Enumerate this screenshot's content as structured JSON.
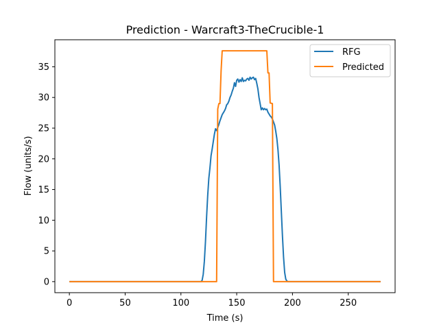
{
  "chart_data": {
    "type": "line",
    "title": "Prediction - Warcraft3-TheCrucible-1",
    "xlabel": "Time (s)",
    "ylabel": "Flow (units/s)",
    "xlim": [
      -13,
      292
    ],
    "ylim": [
      -1.8,
      39.4
    ],
    "xticks": [
      0,
      50,
      100,
      150,
      200,
      250
    ],
    "yticks": [
      0,
      5,
      10,
      15,
      20,
      25,
      30,
      35
    ],
    "grid": false,
    "legend_position": "top-right",
    "series": [
      {
        "name": "RFG",
        "color": "#1f77b4",
        "points": [
          [
            0,
            0
          ],
          [
            118,
            0
          ],
          [
            119,
            0.2
          ],
          [
            120,
            1.2
          ],
          [
            121,
            3.3
          ],
          [
            122,
            6.5
          ],
          [
            123,
            10.5
          ],
          [
            124,
            14
          ],
          [
            125,
            16.8
          ],
          [
            126,
            18.5
          ],
          [
            127,
            20.5
          ],
          [
            128,
            21.6
          ],
          [
            129,
            22.8
          ],
          [
            130,
            24
          ],
          [
            131,
            24.9
          ],
          [
            132,
            24.6
          ],
          [
            133,
            25.1
          ],
          [
            134,
            25.6
          ],
          [
            135,
            26.2
          ],
          [
            136,
            26.7
          ],
          [
            137,
            27.2
          ],
          [
            138,
            27.5
          ],
          [
            139,
            27.8
          ],
          [
            140,
            28.2
          ],
          [
            141,
            28.8
          ],
          [
            142,
            29.0
          ],
          [
            143,
            29.4
          ],
          [
            144,
            30.0
          ],
          [
            145,
            30.4
          ],
          [
            146,
            31.0
          ],
          [
            147,
            31.5
          ],
          [
            148,
            32.4
          ],
          [
            149,
            31.8
          ],
          [
            150,
            32.8
          ],
          [
            151,
            33.0
          ],
          [
            152,
            32.5
          ],
          [
            153,
            32.9
          ],
          [
            154,
            32.6
          ],
          [
            155,
            33.2
          ],
          [
            156,
            32.6
          ],
          [
            157,
            32.8
          ],
          [
            158,
            32.7
          ],
          [
            159,
            33.0
          ],
          [
            160,
            33.1
          ],
          [
            161,
            32.8
          ],
          [
            162,
            33.3
          ],
          [
            163,
            33.0
          ],
          [
            164,
            33.2
          ],
          [
            165,
            33.3
          ],
          [
            166,
            32.9
          ],
          [
            167,
            33.1
          ],
          [
            168,
            32.3
          ],
          [
            169,
            31.4
          ],
          [
            170,
            30.0
          ],
          [
            171,
            29.0
          ],
          [
            172,
            28.0
          ],
          [
            173,
            28.3
          ],
          [
            174,
            28.0
          ],
          [
            175,
            28.2
          ],
          [
            176,
            28.0
          ],
          [
            177,
            28.1
          ],
          [
            178,
            27.6
          ],
          [
            179,
            27.3
          ],
          [
            180,
            27.0
          ],
          [
            181,
            26.8
          ],
          [
            182,
            26.5
          ],
          [
            183,
            26.0
          ],
          [
            184,
            25.5
          ],
          [
            185,
            24.5
          ],
          [
            186,
            23.3
          ],
          [
            187,
            21.5
          ],
          [
            188,
            19.0
          ],
          [
            189,
            15.5
          ],
          [
            190,
            11.5
          ],
          [
            191,
            7.5
          ],
          [
            192,
            4.0
          ],
          [
            193,
            1.5
          ],
          [
            194,
            0.4
          ],
          [
            195,
            0.1
          ],
          [
            196,
            0
          ],
          [
            279,
            0
          ]
        ]
      },
      {
        "name": "Predicted",
        "color": "#ff7f0e",
        "points": [
          [
            0,
            0
          ],
          [
            132,
            0
          ],
          [
            133,
            28.1
          ],
          [
            134,
            29.0
          ],
          [
            135,
            29.0
          ],
          [
            136,
            34.3
          ],
          [
            137,
            37.6
          ],
          [
            177,
            37.6
          ],
          [
            178,
            34.0
          ],
          [
            179,
            34.0
          ],
          [
            180,
            29.1
          ],
          [
            182,
            29.0
          ],
          [
            183,
            0
          ],
          [
            279,
            0
          ]
        ]
      }
    ]
  }
}
